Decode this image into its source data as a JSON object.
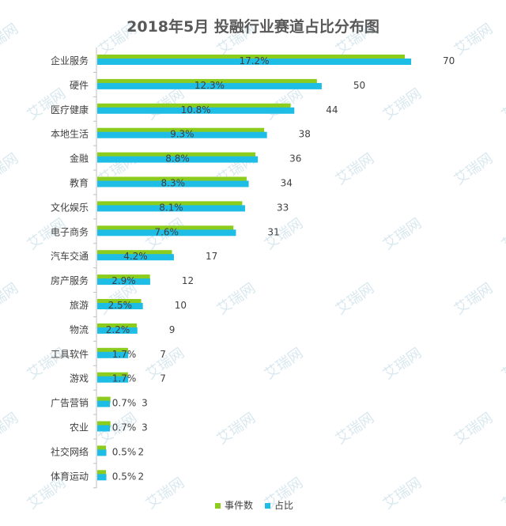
{
  "chart_data": {
    "type": "bar",
    "orientation": "horizontal",
    "title": "2018年5月 投融行业赛道占比分布图",
    "categories": [
      "企业服务",
      "硬件",
      "医疗健康",
      "本地生活",
      "金融",
      "教育",
      "文化娱乐",
      "电子商务",
      "汽车交通",
      "房产服务",
      "旅游",
      "物流",
      "工具软件",
      "游戏",
      "广告营销",
      "农业",
      "社交网络",
      "体育运动"
    ],
    "series": [
      {
        "name": "事件数",
        "values": [
          70,
          50,
          44,
          38,
          36,
          34,
          33,
          31,
          17,
          12,
          10,
          9,
          7,
          7,
          3,
          3,
          2,
          2
        ],
        "color": "#8ccc1c"
      },
      {
        "name": "占比",
        "values": [
          17.2,
          12.3,
          10.8,
          9.3,
          8.8,
          8.3,
          8.1,
          7.6,
          4.2,
          2.9,
          2.5,
          2.2,
          1.7,
          1.7,
          0.7,
          0.7,
          0.5,
          0.5
        ],
        "color": "#1ebde6"
      }
    ],
    "value_labels": [
      "70",
      "50",
      "44",
      "38",
      "36",
      "34",
      "33",
      "31",
      "17",
      "12",
      "10",
      "9",
      "7",
      "7",
      "3",
      "3",
      "2",
      "2"
    ],
    "percent_labels": [
      "17.2%",
      "12.3%",
      "10.8%",
      "9.3%",
      "8.8%",
      "8.3%",
      "8.1%",
      "7.6%",
      "4.2%",
      "2.9%",
      "2.5%",
      "2.2%",
      "1.7%",
      "1.7%",
      "0.7%",
      "0.7%",
      "0.5%",
      "0.5%"
    ],
    "legend_position": "bottom",
    "grid": false
  },
  "watermark": {
    "text": "艾瑞网",
    "color": "#d9e8ef"
  }
}
